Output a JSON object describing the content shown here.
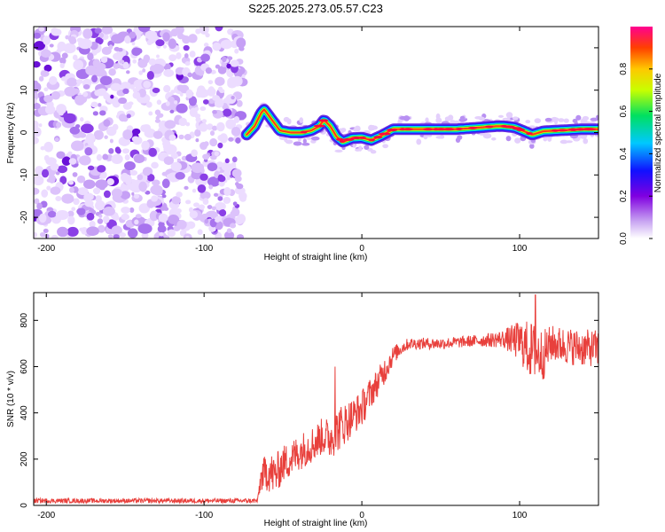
{
  "title": "S225.2025.273.05.57.C23",
  "chart_data": [
    {
      "type": "heatmap",
      "xlabel": "Height of straight line (km)",
      "ylabel": "Frequency (Hz)",
      "xlim": [
        -208,
        150
      ],
      "ylim": [
        -25,
        25
      ],
      "xticks": [
        -200,
        -100,
        0,
        100
      ],
      "yticks": [
        -20,
        -10,
        0,
        10,
        20
      ],
      "regions": [
        {
          "x_range": [
            -208,
            -75
          ],
          "description": "broadband noise, low amplitude"
        },
        {
          "x_range": [
            -75,
            150
          ],
          "description": "narrow ridge near 0 Hz, high amplitude"
        }
      ],
      "ridge": {
        "x": [
          -73,
          -68,
          -64,
          -62,
          -58,
          -52,
          -45,
          -38,
          -32,
          -27,
          -24,
          -20,
          -16,
          -12,
          -6,
          0,
          6,
          12,
          20,
          30,
          45,
          60,
          75,
          85,
          90,
          97,
          103,
          108,
          115,
          125,
          140,
          150
        ],
        "freq": [
          -0.5,
          1.5,
          4.5,
          5.5,
          3.5,
          0.5,
          0,
          0,
          0.5,
          1.5,
          3,
          1.5,
          -1,
          -2.2,
          -1.3,
          -1.2,
          -1.8,
          -0.8,
          0.8,
          0.8,
          0.8,
          0.8,
          1.2,
          1.5,
          1.5,
          1.2,
          0.3,
          -0.5,
          0.3,
          0.5,
          0.8,
          0.8
        ]
      },
      "colorbar": {
        "label": "Normalized spectral amplitude",
        "range": [
          0,
          1
        ],
        "ticks": [
          0.0,
          0.2,
          0.4,
          0.6,
          0.8
        ],
        "tick_labels": [
          "0.0",
          "0.2",
          "0.4",
          "0.6",
          "0.8"
        ]
      }
    },
    {
      "type": "line",
      "xlabel": "Height of straight line (km)",
      "ylabel": "SNR (10 * v/v)",
      "xlim": [
        -208,
        150
      ],
      "ylim": [
        0,
        920
      ],
      "xticks": [
        -200,
        -100,
        0,
        100
      ],
      "yticks": [
        0,
        200,
        400,
        600,
        800
      ],
      "series": [
        {
          "name": "SNR",
          "color": "#e8403c",
          "x": [
            -208,
            -150,
            -100,
            -66,
            -64,
            -60,
            -55,
            -50,
            -45,
            -40,
            -35,
            -30,
            -25,
            -20,
            -15,
            -10,
            -5,
            0,
            5,
            10,
            15,
            20,
            25,
            30,
            40,
            50,
            60,
            70,
            80,
            90,
            100,
            105,
            110,
            115,
            120,
            130,
            140,
            150
          ],
          "y": [
            20,
            20,
            20,
            20,
            120,
            150,
            130,
            180,
            200,
            230,
            250,
            270,
            300,
            290,
            330,
            360,
            390,
            420,
            480,
            530,
            590,
            650,
            680,
            700,
            700,
            700,
            705,
            710,
            715,
            720,
            710,
            680,
            660,
            650,
            700,
            690,
            680,
            680
          ],
          "noise_amplitude": [
            10,
            10,
            10,
            10,
            60,
            90,
            90,
            80,
            80,
            80,
            80,
            80,
            80,
            90,
            100,
            90,
            80,
            80,
            70,
            60,
            60,
            40,
            30,
            25,
            25,
            25,
            25,
            25,
            30,
            40,
            90,
            120,
            130,
            110,
            80,
            80,
            80,
            80
          ],
          "spikes": [
            {
              "x": -17,
              "y": 600
            },
            {
              "x": 110,
              "y": 910
            }
          ]
        }
      ]
    }
  ]
}
